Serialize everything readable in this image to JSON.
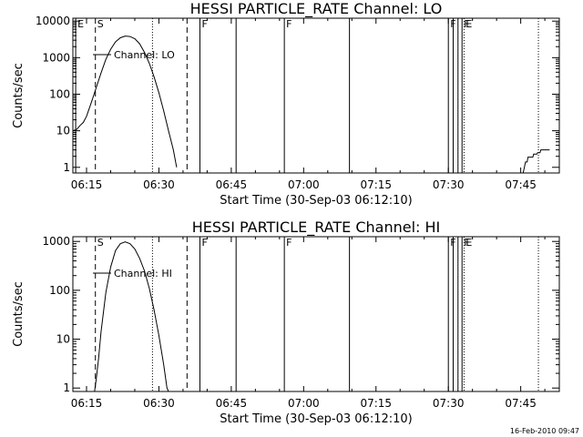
{
  "footer": "16-Feb-2010 09:47",
  "chart_data": [
    {
      "type": "line",
      "title": "HESSI PARTICLE_RATE Channel: LO",
      "xlabel": "Start Time (30-Sep-03 06:12:10)",
      "ylabel": "Counts/sec",
      "xlim": [
        "06:12:10",
        "07:53:00"
      ],
      "ylim": [
        0.7,
        12000
      ],
      "y_scale": "log",
      "x_ticks": [
        "06:15",
        "06:30",
        "06:45",
        "07:00",
        "07:15",
        "07:30",
        "07:45"
      ],
      "y_ticks": [
        "1",
        "10",
        "100",
        "1000",
        "10000"
      ],
      "legend": "Channel: LO",
      "legend_placement": "top-left",
      "series": [
        {
          "name": "Channel: LO",
          "points": [
            [
              "06:12:10",
              10
            ],
            [
              "06:13:00",
              11
            ],
            [
              "06:13:40",
              14
            ],
            [
              "06:14:20",
              17
            ],
            [
              "06:15:00",
              25
            ],
            [
              "06:16:00",
              60
            ],
            [
              "06:17:00",
              150
            ],
            [
              "06:18:00",
              380
            ],
            [
              "06:19:00",
              900
            ],
            [
              "06:20:00",
              1700
            ],
            [
              "06:21:00",
              2700
            ],
            [
              "06:22:00",
              3500
            ],
            [
              "06:23:00",
              3900
            ],
            [
              "06:24:00",
              3800
            ],
            [
              "06:25:00",
              3300
            ],
            [
              "06:26:00",
              2400
            ],
            [
              "06:27:00",
              1400
            ],
            [
              "06:28:00",
              700
            ],
            [
              "06:29:00",
              300
            ],
            [
              "06:30:00",
              110
            ],
            [
              "06:31:00",
              35
            ],
            [
              "06:32:00",
              10
            ],
            [
              "06:33:00",
              3
            ],
            [
              "06:33:40",
              1
            ]
          ]
        },
        {
          "name": "",
          "points": [
            [
              "07:45:30",
              0.7
            ],
            [
              "07:46:00",
              1.4
            ],
            [
              "07:46:20",
              1.4
            ],
            [
              "07:46:30",
              1.9
            ],
            [
              "07:47:30",
              1.9
            ],
            [
              "07:47:40",
              2.3
            ],
            [
              "07:48:20",
              2.3
            ],
            [
              "07:48:30",
              2.5
            ],
            [
              "07:49:00",
              2.5
            ],
            [
              "07:49:10",
              3.0
            ],
            [
              "07:51:00",
              3.0
            ]
          ]
        }
      ],
      "markers": [
        {
          "time": "06:12:45",
          "style": "solid",
          "label": "E"
        },
        {
          "time": "06:16:50",
          "style": "dashed",
          "label": "S"
        },
        {
          "time": "06:28:40",
          "style": "dotted",
          "label": ""
        },
        {
          "time": "06:35:50",
          "style": "dashed",
          "label": ""
        },
        {
          "time": "06:38:30",
          "style": "solid",
          "label": "F"
        },
        {
          "time": "06:46:00",
          "style": "solid",
          "label": ""
        },
        {
          "time": "06:56:00",
          "style": "solid",
          "label": "F"
        },
        {
          "time": "07:09:30",
          "style": "solid",
          "label": ""
        },
        {
          "time": "07:30:00",
          "style": "solid",
          "label": "F"
        },
        {
          "time": "07:31:00",
          "style": "solid",
          "label": ""
        },
        {
          "time": "07:32:00",
          "style": "solid",
          "label": ""
        },
        {
          "time": "07:32:50",
          "style": "solid",
          "label": "F"
        },
        {
          "time": "07:33:15",
          "style": "dotted",
          "label": "E"
        },
        {
          "time": "07:48:40",
          "style": "dotted",
          "label": ""
        }
      ]
    },
    {
      "type": "line",
      "title": "HESSI PARTICLE_RATE Channel: HI",
      "xlabel": "Start Time (30-Sep-03 06:12:10)",
      "ylabel": "Counts/sec",
      "xlim": [
        "06:12:10",
        "07:53:00"
      ],
      "ylim": [
        0.85,
        1250
      ],
      "y_scale": "log",
      "x_ticks": [
        "06:15",
        "06:30",
        "06:45",
        "07:00",
        "07:15",
        "07:30",
        "07:45"
      ],
      "y_ticks": [
        "1",
        "10",
        "100",
        "1000"
      ],
      "legend": "Channel: HI",
      "legend_placement": "top-left",
      "series": [
        {
          "name": "Channel: HI",
          "points": [
            [
              "06:16:40",
              0.85
            ],
            [
              "06:17:00",
              1.5
            ],
            [
              "06:17:30",
              4
            ],
            [
              "06:18:00",
              14
            ],
            [
              "06:19:00",
              90
            ],
            [
              "06:20:00",
              300
            ],
            [
              "06:21:00",
              650
            ],
            [
              "06:22:00",
              900
            ],
            [
              "06:23:00",
              980
            ],
            [
              "06:24:00",
              900
            ],
            [
              "06:25:00",
              700
            ],
            [
              "06:26:00",
              450
            ],
            [
              "06:27:00",
              250
            ],
            [
              "06:28:00",
              110
            ],
            [
              "06:29:00",
              40
            ],
            [
              "06:30:00",
              12
            ],
            [
              "06:31:00",
              3
            ],
            [
              "06:31:40",
              1
            ],
            [
              "06:32:00",
              0.85
            ]
          ]
        }
      ],
      "markers": [
        {
          "time": "06:16:50",
          "style": "dashed",
          "label": "S"
        },
        {
          "time": "06:28:40",
          "style": "dotted",
          "label": ""
        },
        {
          "time": "06:35:50",
          "style": "dashed",
          "label": ""
        },
        {
          "time": "06:38:30",
          "style": "solid",
          "label": "F"
        },
        {
          "time": "06:46:00",
          "style": "solid",
          "label": ""
        },
        {
          "time": "06:56:00",
          "style": "solid",
          "label": "F"
        },
        {
          "time": "07:09:30",
          "style": "solid",
          "label": ""
        },
        {
          "time": "07:30:00",
          "style": "solid",
          "label": "F"
        },
        {
          "time": "07:31:00",
          "style": "solid",
          "label": ""
        },
        {
          "time": "07:32:00",
          "style": "solid",
          "label": ""
        },
        {
          "time": "07:32:50",
          "style": "solid",
          "label": "F"
        },
        {
          "time": "07:33:15",
          "style": "dotted",
          "label": "E"
        },
        {
          "time": "07:48:40",
          "style": "dotted",
          "label": ""
        }
      ]
    }
  ]
}
